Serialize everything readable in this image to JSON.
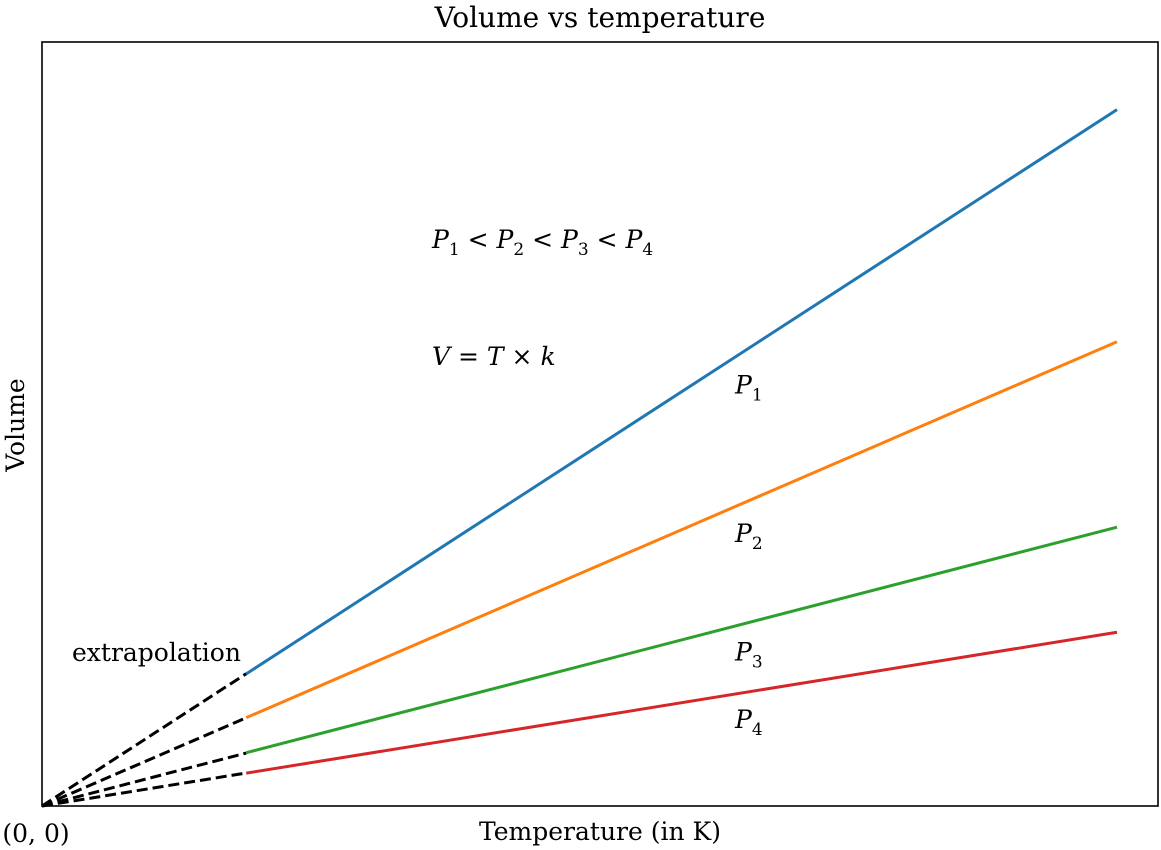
{
  "chart_data": {
    "type": "line",
    "title": "Volume vs temperature",
    "xlabel": "Temperature (in K)",
    "ylabel": "Volume",
    "origin_label": "(0, 0)",
    "xlim": [
      0,
      10
    ],
    "ylim": [
      0,
      10
    ],
    "grid": false,
    "legend": "none",
    "extrapolation": {
      "label": "extrapolation",
      "x_start": 0,
      "x_end": 1.9,
      "style": "dashed",
      "color": "#000000"
    },
    "series": [
      {
        "name": "P1",
        "symbol": "P",
        "subscript": "1",
        "color": "#1f77b4",
        "slope": 0.954,
        "x": [
          1.9,
          10
        ],
        "values": [
          1.81,
          9.54
        ]
      },
      {
        "name": "P2",
        "symbol": "P",
        "subscript": "2",
        "color": "#ff7f0e",
        "slope": 0.636,
        "x": [
          1.9,
          10
        ],
        "values": [
          1.21,
          6.36
        ]
      },
      {
        "name": "P3",
        "symbol": "P",
        "subscript": "3",
        "color": "#2ca02c",
        "slope": 0.382,
        "x": [
          1.9,
          10
        ],
        "values": [
          0.73,
          3.82
        ]
      },
      {
        "name": "P4",
        "symbol": "P",
        "subscript": "4",
        "color": "#d62728",
        "slope": 0.238,
        "x": [
          1.9,
          10
        ],
        "values": [
          0.45,
          2.38
        ]
      }
    ],
    "series_label_x": 6.4,
    "annotations": {
      "pressure_order": {
        "text": "P1 < P2 < P3 < P4",
        "parts": [
          {
            "sym": "P",
            "sub": "1"
          },
          {
            "op": " < "
          },
          {
            "sym": "P",
            "sub": "2"
          },
          {
            "op": " < "
          },
          {
            "sym": "P",
            "sub": "3"
          },
          {
            "op": " < "
          },
          {
            "sym": "P",
            "sub": "4"
          }
        ]
      },
      "law": {
        "text": "V = T × k",
        "parts": [
          {
            "sym": "V"
          },
          {
            "op": " = "
          },
          {
            "sym": "T"
          },
          {
            "op": " × "
          },
          {
            "sym": "k"
          }
        ]
      }
    }
  }
}
